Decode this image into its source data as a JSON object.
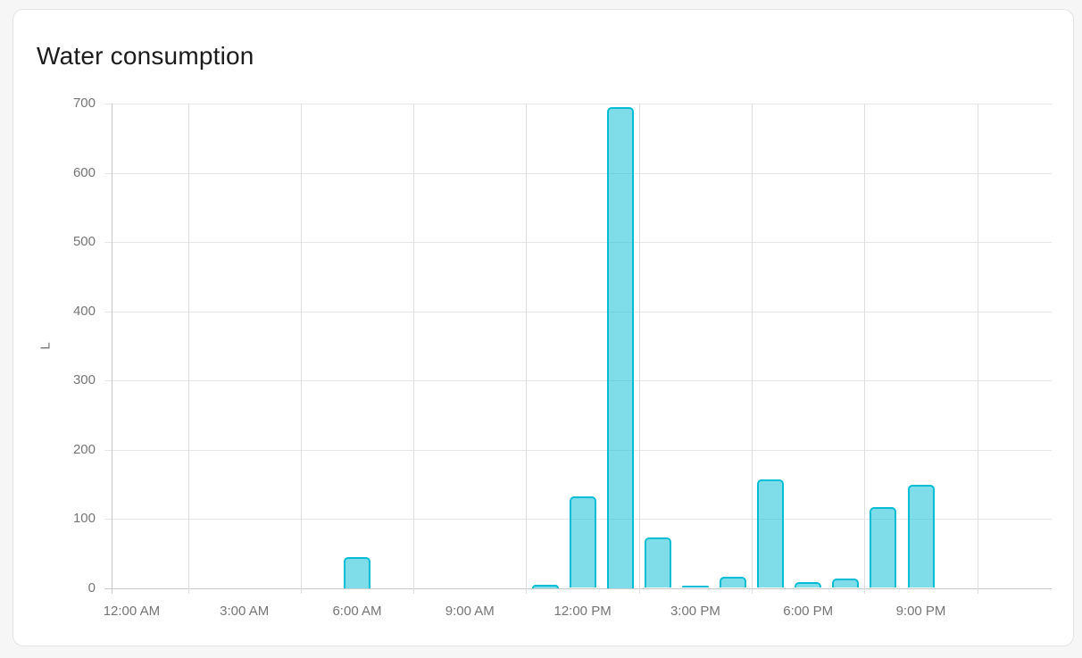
{
  "card": {
    "title": "Water consumption"
  },
  "chart_data": {
    "type": "bar",
    "title": "Water consumption",
    "xlabel": "",
    "ylabel": "L",
    "unit": "L",
    "ylim": [
      0,
      700
    ],
    "yticks": [
      0,
      100,
      200,
      300,
      400,
      500,
      600,
      700
    ],
    "x_axis_labels": [
      "12:00 AM",
      "3:00 AM",
      "6:00 AM",
      "9:00 AM",
      "12:00 PM",
      "3:00 PM",
      "6:00 PM",
      "9:00 PM"
    ],
    "grid": "on",
    "legend": "none",
    "bars": [
      {
        "time": "6:00 AM",
        "hour": 6,
        "value": 45
      },
      {
        "time": "11:00 AM",
        "hour": 11,
        "value": 5
      },
      {
        "time": "12:00 PM",
        "hour": 12,
        "value": 132
      },
      {
        "time": "1:00 PM",
        "hour": 13,
        "value": 695
      },
      {
        "time": "2:00 PM",
        "hour": 14,
        "value": 73
      },
      {
        "time": "3:00 PM",
        "hour": 15,
        "value": 3
      },
      {
        "time": "4:00 PM",
        "hour": 16,
        "value": 16
      },
      {
        "time": "5:00 PM",
        "hour": 17,
        "value": 157
      },
      {
        "time": "6:00 PM",
        "hour": 18,
        "value": 8
      },
      {
        "time": "7:00 PM",
        "hour": 19,
        "value": 13
      },
      {
        "time": "8:00 PM",
        "hour": 20,
        "value": 117
      },
      {
        "time": "9:00 PM",
        "hour": 21,
        "value": 149
      }
    ],
    "colors": {
      "bar_fill": "rgba(0,188,212,0.5)",
      "bar_border": "#00bcd4",
      "grid_line": "#e6e6e6",
      "grid_line_vertical": "#dedede",
      "axis_line": "#c9c9c9",
      "tick_label": "#757575",
      "title_text": "#1c1c1c"
    }
  }
}
